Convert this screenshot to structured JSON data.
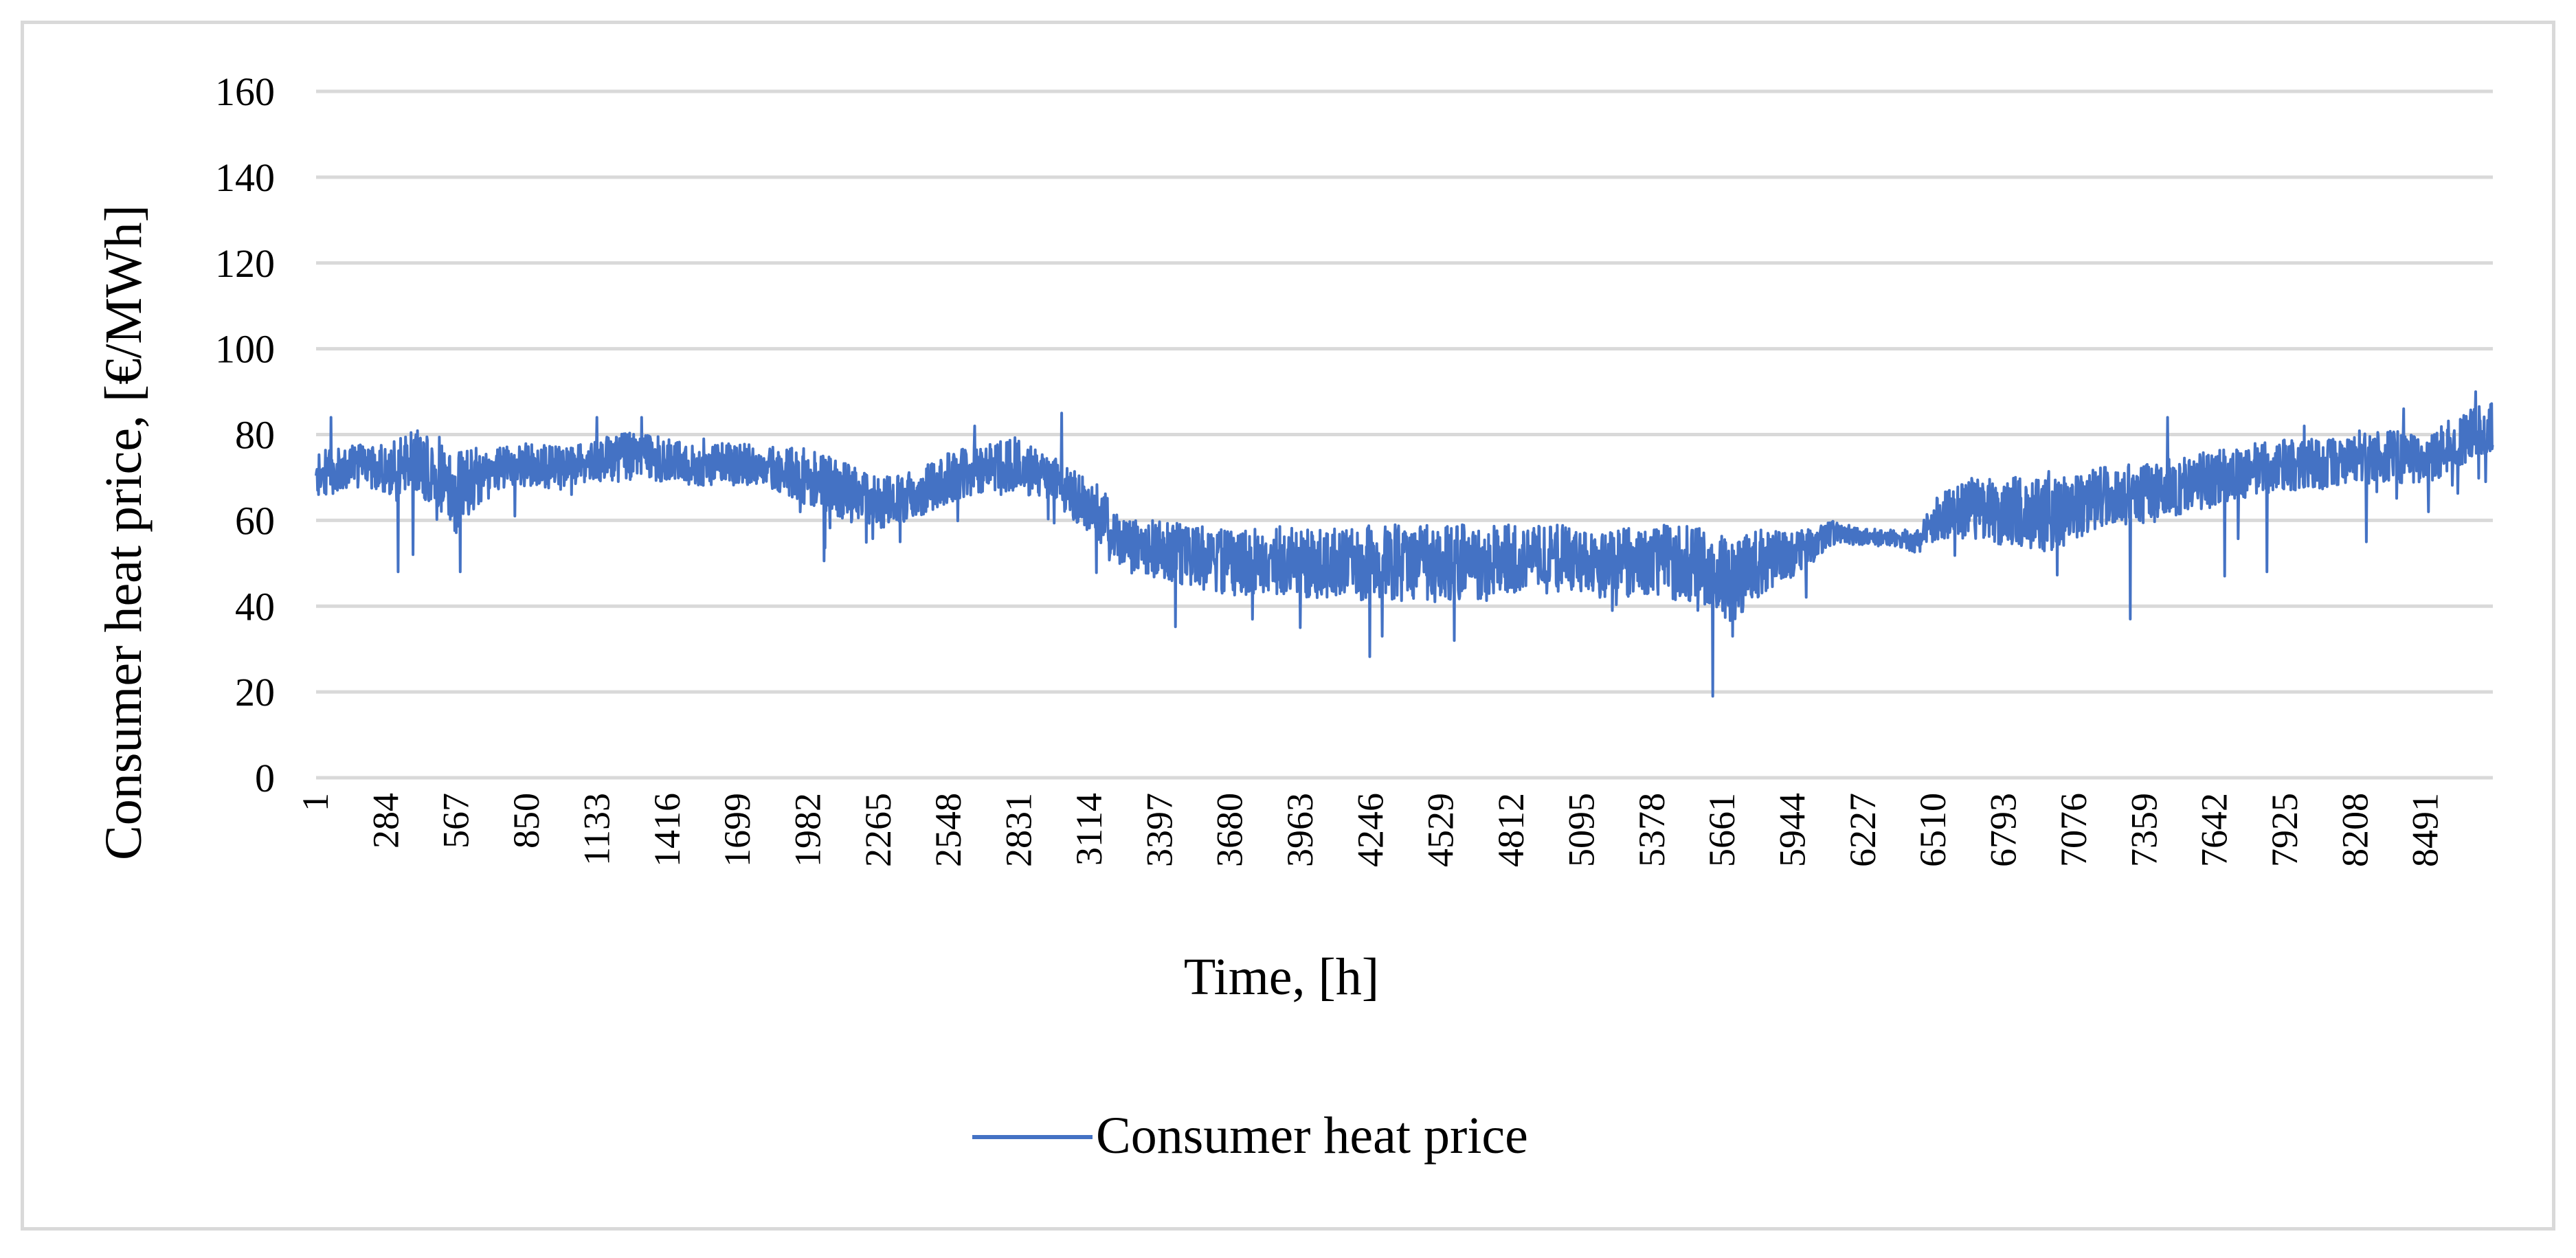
{
  "chart_data": {
    "type": "line",
    "title": "",
    "xlabel": "Time, [h]",
    "ylabel": "Consumer heat price, [€/MWh]",
    "ylim": [
      0,
      160
    ],
    "y_ticks": [
      "0",
      "20",
      "40",
      "60",
      "80",
      "100",
      "120",
      "140",
      "160"
    ],
    "x_tick_labels": [
      "1",
      "284",
      "567",
      "850",
      "1133",
      "1416",
      "1699",
      "1982",
      "2265",
      "2548",
      "2831",
      "3114",
      "3397",
      "3680",
      "3963",
      "4246",
      "4529",
      "4812",
      "5095",
      "5378",
      "5661",
      "5944",
      "6227",
      "6510",
      "6793",
      "7076",
      "7359",
      "7642",
      "7925",
      "8208",
      "8491"
    ],
    "xlim": [
      1,
      8760
    ],
    "grid": true,
    "legend_position": "bottom",
    "colors": {
      "series": "#4472c4",
      "grid": "#d9d9d9",
      "border": "#d9d9d9"
    },
    "series": [
      {
        "name": "Consumer heat price",
        "profile_hours": [
          1,
          100,
          200,
          300,
          400,
          500,
          567,
          700,
          850,
          1000,
          1133,
          1300,
          1416,
          1550,
          1699,
          1850,
          1982,
          2100,
          2265,
          2400,
          2548,
          2700,
          2831,
          2950,
          3114,
          3250,
          3397,
          3500,
          3680,
          3850,
          3963,
          4100,
          4246,
          4400,
          4529,
          4700,
          4812,
          5000,
          5095,
          5250,
          5378,
          5500,
          5640,
          5700,
          5800,
          5944,
          6100,
          6227,
          6350,
          6450,
          6510,
          6650,
          6793,
          6950,
          7076,
          7200,
          7359,
          7500,
          7642,
          7800,
          7925,
          8050,
          8208,
          8350,
          8491,
          8600,
          8760
        ],
        "profile_mean": [
          70,
          72,
          73,
          72,
          74,
          70,
          67,
          72,
          73,
          72,
          74,
          75,
          74,
          73,
          73,
          72,
          70,
          67,
          64,
          66,
          70,
          72,
          73,
          70,
          64,
          55,
          53,
          52,
          50,
          51,
          50,
          50,
          50,
          50,
          50,
          50,
          51,
          51,
          50,
          50,
          51,
          50,
          48,
          46,
          50,
          52,
          57,
          56,
          56,
          55,
          60,
          63,
          62,
          62,
          62,
          66,
          66,
          68,
          70,
          72,
          73,
          73,
          75,
          75,
          74,
          78,
          82
        ],
        "profile_spread": [
          6,
          5,
          5,
          6,
          7,
          10,
          10,
          5,
          5,
          5,
          5,
          6,
          5,
          5,
          5,
          5,
          7,
          7,
          6,
          6,
          6,
          6,
          7,
          5,
          7,
          6,
          7,
          7,
          8,
          8,
          8,
          8,
          9,
          9,
          9,
          9,
          8,
          8,
          8,
          8,
          8,
          9,
          10,
          10,
          8,
          5,
          3,
          2,
          2,
          3,
          5,
          7,
          8,
          10,
          8,
          7,
          7,
          7,
          7,
          6,
          6,
          6,
          6,
          6,
          6,
          6,
          6
        ],
        "profile_ceiling": [
          85,
          85,
          85,
          85,
          85,
          85,
          85,
          85,
          85,
          85,
          85,
          85,
          85,
          85,
          85,
          85,
          85,
          85,
          85,
          85,
          85,
          85,
          85,
          85,
          85,
          60,
          60,
          60,
          60,
          60,
          60,
          60,
          60,
          60,
          60,
          60,
          60,
          60,
          60,
          60,
          60,
          60,
          60,
          60,
          60,
          62,
          62,
          62,
          62,
          62,
          72,
          72,
          72,
          72,
          85,
          85,
          85,
          85,
          85,
          85,
          85,
          85,
          85,
          85,
          85,
          90,
          90
        ],
        "spikes": [
          {
            "hour": 60,
            "value": 84
          },
          {
            "hour": 330,
            "value": 48
          },
          {
            "hour": 390,
            "value": 52
          },
          {
            "hour": 580,
            "value": 48
          },
          {
            "hour": 800,
            "value": 61
          },
          {
            "hour": 1130,
            "value": 84
          },
          {
            "hour": 1310,
            "value": 84
          },
          {
            "hour": 1560,
            "value": 79
          },
          {
            "hour": 2350,
            "value": 55
          },
          {
            "hour": 2650,
            "value": 82
          },
          {
            "hour": 3000,
            "value": 85
          },
          {
            "hour": 3330,
            "value": 55
          },
          {
            "hour": 3960,
            "value": 35
          },
          {
            "hour": 4290,
            "value": 33
          },
          {
            "hour": 4580,
            "value": 32
          },
          {
            "hour": 5560,
            "value": 39
          },
          {
            "hour": 5620,
            "value": 19
          },
          {
            "hour": 5700,
            "value": 33
          },
          {
            "hour": 7300,
            "value": 37
          },
          {
            "hour": 7450,
            "value": 84
          },
          {
            "hour": 7680,
            "value": 47
          },
          {
            "hour": 7850,
            "value": 48
          },
          {
            "hour": 8000,
            "value": 82
          },
          {
            "hour": 8250,
            "value": 55
          },
          {
            "hour": 8400,
            "value": 86
          },
          {
            "hour": 8500,
            "value": 62
          },
          {
            "hour": 8690,
            "value": 90
          },
          {
            "hour": 8750,
            "value": 87
          }
        ]
      }
    ]
  }
}
